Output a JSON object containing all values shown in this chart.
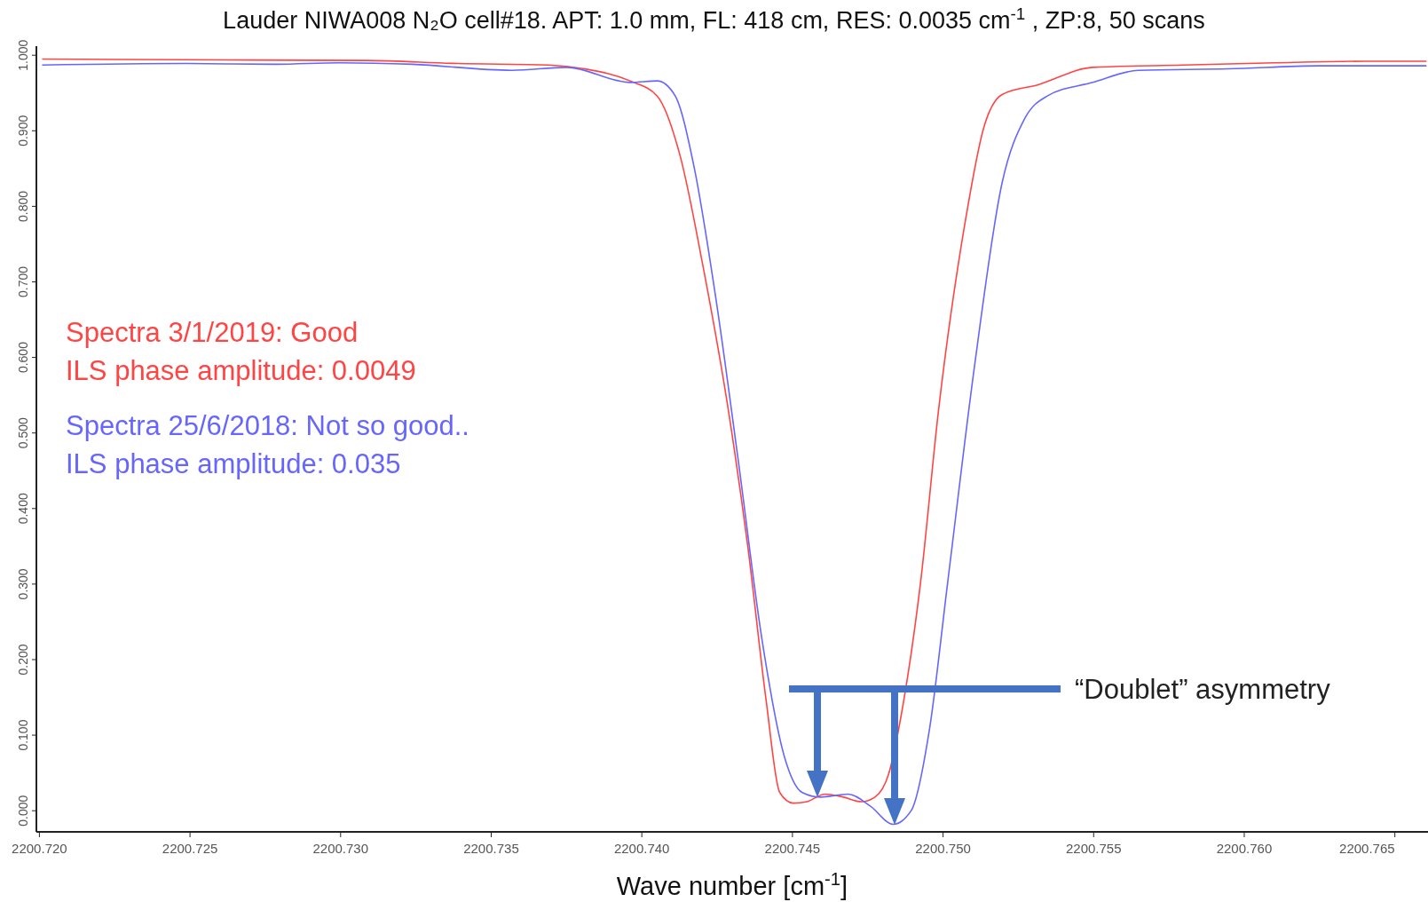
{
  "chart_data": {
    "type": "line",
    "title": "Lauder NIWA008 N₂O cell#18. APT: 1.0 mm, FL: 418 cm, RES: 0.0035 cm$^{-1}$ , ZP:8, 50 scans",
    "xlabel": "Wave number [cm$^{-1}$]",
    "xlim": [
      2200.7199,
      2200.7661
    ],
    "ylim": [
      -0.028,
      1.012
    ],
    "xticks": [
      {
        "value": 2200.72,
        "label": "2200.720"
      },
      {
        "value": 2200.725,
        "label": "2200.725"
      },
      {
        "value": 2200.73,
        "label": "2200.730"
      },
      {
        "value": 2200.735,
        "label": "2200.735"
      },
      {
        "value": 2200.74,
        "label": "2200.740"
      },
      {
        "value": 2200.745,
        "label": "2200.745"
      },
      {
        "value": 2200.75,
        "label": "2200.750"
      },
      {
        "value": 2200.755,
        "label": "2200.755"
      },
      {
        "value": 2200.76,
        "label": "2200.760"
      },
      {
        "value": 2200.765,
        "label": "2200.765"
      }
    ],
    "yticks": [
      {
        "value": 0,
        "label": "0.000"
      },
      {
        "value": 0.1,
        "label": "0.100"
      },
      {
        "value": 0.2,
        "label": "0.200"
      },
      {
        "value": 0.3,
        "label": "0.300"
      },
      {
        "value": 0.4,
        "label": "0.400"
      },
      {
        "value": 0.5,
        "label": "0.500"
      },
      {
        "value": 0.6,
        "label": "0.600"
      },
      {
        "value": 0.7,
        "label": "0.700"
      },
      {
        "value": 0.8,
        "label": "0.800"
      },
      {
        "value": 0.9,
        "label": "0.900"
      },
      {
        "value": 1,
        "label": "1.000"
      }
    ],
    "grid": false,
    "legend": "left",
    "marker": "none",
    "line_style": "solid",
    "series": [
      {
        "name": "Spectra 3/1/2019: Good",
        "color": "#ff4444",
        "x": [
          2200.72009,
          2200.72485,
          2200.73087,
          2200.73389,
          2200.7369,
          2200.7381,
          2200.73961,
          2200.74051,
          2200.74127,
          2200.74202,
          2200.74292,
          2200.74352,
          2200.74413,
          2200.74458,
          2200.74503,
          2200.74548,
          2200.74608,
          2200.74669,
          2200.74729,
          2200.74774,
          2200.74819,
          2200.74864,
          2200.74925,
          2200.74985,
          2200.75075,
          2200.75135,
          2200.75196,
          2200.75316,
          2200.75497,
          2200.75798,
          2200.76099,
          2200.76401,
          2200.76605
        ],
        "values": [
          0.995,
          0.994,
          0.993,
          0.989,
          0.987,
          0.982,
          0.966,
          0.946,
          0.867,
          0.723,
          0.518,
          0.349,
          0.145,
          0.024,
          0.01,
          0.012,
          0.022,
          0.018,
          0.012,
          0.018,
          0.048,
          0.133,
          0.301,
          0.53,
          0.783,
          0.904,
          0.948,
          0.961,
          0.984,
          0.987,
          0.99,
          0.992,
          0.992
        ]
      },
      {
        "name": "Spectra 25/6/2018: Not so good..",
        "color": "#6666ff",
        "x": [
          2200.72009,
          2200.72485,
          2200.72786,
          2200.72997,
          2200.73238,
          2200.73569,
          2200.7375,
          2200.73961,
          2200.74051,
          2200.74111,
          2200.74172,
          2200.74247,
          2200.74322,
          2200.74398,
          2200.74473,
          2200.74533,
          2200.74593,
          2200.74684,
          2200.74759,
          2200.74834,
          2200.74894,
          2200.74955,
          2200.75015,
          2200.75105,
          2200.75196,
          2200.75271,
          2200.75346,
          2200.75497,
          2200.75648,
          2200.75949,
          2200.7625,
          2200.76605
        ],
        "values": [
          0.987,
          0.989,
          0.988,
          0.99,
          0.988,
          0.98,
          0.984,
          0.964,
          0.966,
          0.946,
          0.855,
          0.675,
          0.458,
          0.229,
          0.072,
          0.024,
          0.018,
          0.022,
          0.006,
          -0.018,
          0,
          0.108,
          0.301,
          0.59,
          0.831,
          0.916,
          0.946,
          0.964,
          0.98,
          0.982,
          0.986,
          0.986
        ]
      }
    ],
    "annotations": [
      "ILS phase amplitude: 0.0049",
      "ILS phase amplitude: 0.035",
      "“Doublet” asymmetry"
    ]
  }
}
